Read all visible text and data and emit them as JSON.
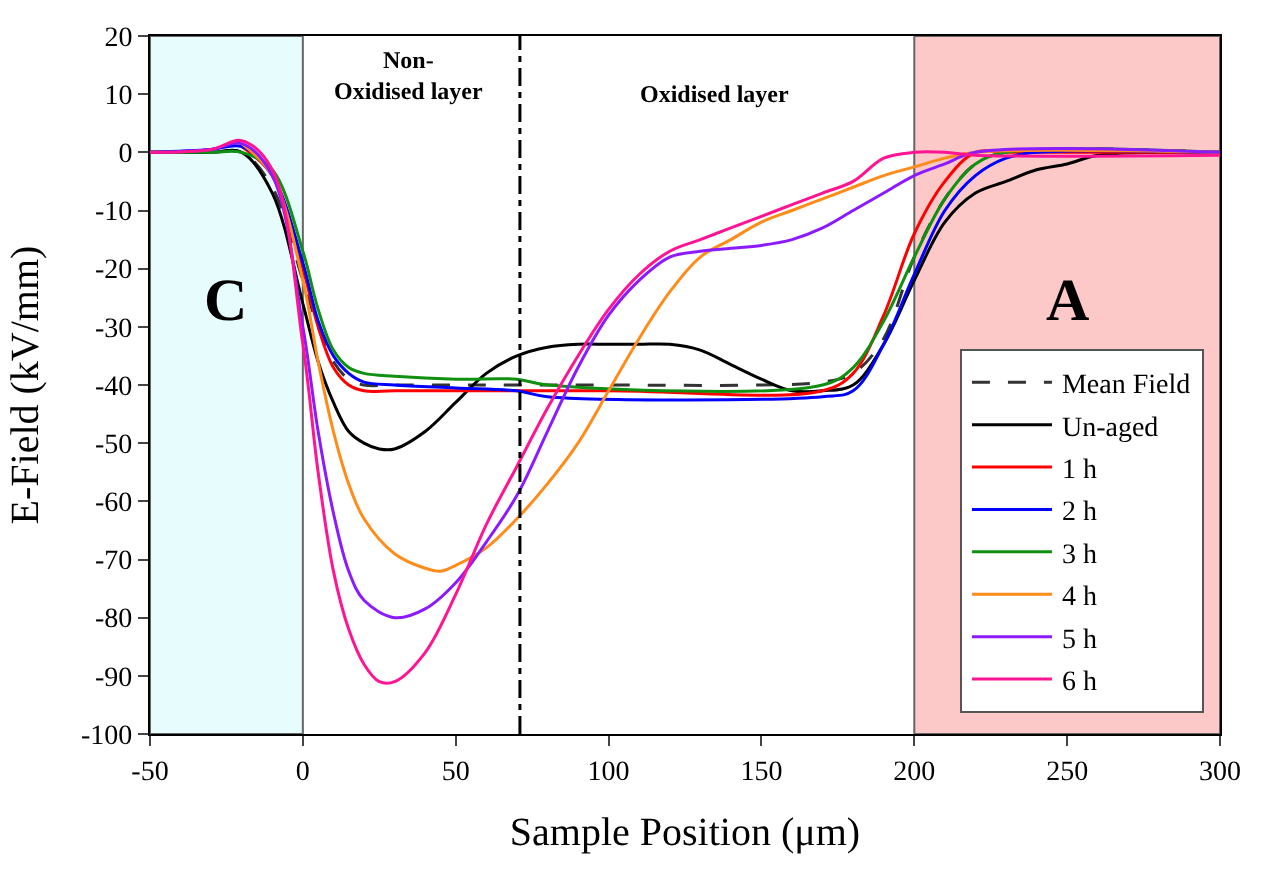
{
  "chart_data": {
    "type": "line",
    "xlabel": "Sample Position (μm)",
    "ylabel": "E-Field (kV/mm)",
    "xlim": [
      -50,
      300
    ],
    "xticks": [
      -50,
      0,
      50,
      100,
      150,
      200,
      250,
      300
    ],
    "ylim": [
      -100,
      20
    ],
    "yticks": [
      -100,
      -90,
      -80,
      -70,
      -60,
      -50,
      -40,
      -30,
      -20,
      -10,
      0,
      10,
      20
    ],
    "grid": false,
    "legend": "bottom right",
    "marker": "none",
    "bands": [
      {
        "axis": "x",
        "from": -50,
        "to": 0,
        "label": "C",
        "color": "#e6fcfd"
      },
      {
        "axis": "x",
        "from": 200,
        "to": 300,
        "label": "A",
        "color": "#fcc8c8"
      }
    ],
    "ref_lines": [
      {
        "axis": "x",
        "value": 71,
        "label": null,
        "line_style": "dashdot",
        "color": "#000000"
      }
    ],
    "annotations": [
      "Non-\nOxidised layer",
      "Oxidised layer"
    ],
    "series": [
      {
        "name": "Mean Field",
        "color": "#333333",
        "line_style": "dashed",
        "x": [
          -50,
          -30,
          -20,
          -10,
          0,
          5,
          10,
          15,
          20,
          30,
          50,
          70,
          100,
          150,
          170,
          180,
          190,
          200,
          210,
          220,
          230,
          300
        ],
        "values": [
          0,
          0,
          0,
          -6,
          -22,
          -30,
          -36,
          -39,
          -40,
          -40,
          -40,
          -40,
          -40,
          -40,
          -39.5,
          -38,
          -32,
          -18,
          -8,
          -2,
          0,
          0
        ]
      },
      {
        "name": "Un-aged",
        "color": "#000000",
        "x": [
          -50,
          -30,
          -20,
          -10,
          0,
          5,
          10,
          15,
          20,
          25,
          30,
          40,
          50,
          60,
          70,
          80,
          90,
          100,
          110,
          120,
          130,
          140,
          150,
          160,
          170,
          180,
          190,
          200,
          210,
          220,
          230,
          240,
          250,
          260,
          280,
          300
        ],
        "values": [
          0,
          0,
          0,
          -7,
          -26,
          -36,
          -43,
          -48,
          -50,
          -51,
          -51,
          -48,
          -43,
          -38,
          -35,
          -33.5,
          -33,
          -33,
          -33,
          -33,
          -34,
          -36.5,
          -39,
          -41,
          -41,
          -40,
          -33,
          -22,
          -12,
          -7,
          -5,
          -3,
          -2,
          -0.5,
          0,
          0
        ]
      },
      {
        "name": "1 h",
        "color": "#ff0000",
        "x": [
          -20,
          -10,
          0,
          5,
          10,
          15,
          20,
          30,
          100,
          170,
          180,
          190,
          200,
          210,
          220,
          230,
          300
        ],
        "values": [
          1,
          -4,
          -20,
          -30,
          -37,
          -40,
          -41,
          -41,
          -41,
          -41,
          -38,
          -28,
          -14,
          -5,
          0,
          0,
          0
        ]
      },
      {
        "name": "2 h",
        "color": "#0000ff",
        "x": [
          -50,
          -30,
          -20,
          -10,
          0,
          5,
          10,
          15,
          20,
          30,
          50,
          70,
          80,
          170,
          180,
          190,
          200,
          210,
          220,
          230,
          240,
          300
        ],
        "values": [
          0,
          0.5,
          1,
          -4,
          -19,
          -29,
          -35,
          -38,
          -39.5,
          -40,
          -40.5,
          -41,
          -42,
          -42,
          -41,
          -33,
          -21,
          -10,
          -4,
          -1,
          0,
          0
        ]
      },
      {
        "name": "3 h",
        "color": "#109010",
        "x": [
          -50,
          -30,
          -20,
          -10,
          0,
          5,
          10,
          15,
          20,
          30,
          50,
          70,
          80,
          170,
          180,
          190,
          200,
          210,
          220,
          230,
          300
        ],
        "values": [
          0,
          0,
          0,
          -3,
          -17,
          -27,
          -34,
          -37,
          -38,
          -38.5,
          -39,
          -39,
          -40,
          -40,
          -37,
          -29,
          -18,
          -8,
          -2,
          0,
          0
        ]
      },
      {
        "name": "4 h",
        "color": "#ff8c1a",
        "x": [
          -20,
          -10,
          0,
          5,
          10,
          15,
          20,
          30,
          40,
          45,
          50,
          60,
          70,
          80,
          90,
          100,
          110,
          120,
          130,
          140,
          150,
          160,
          170,
          180,
          190,
          200,
          210,
          220,
          300
        ],
        "values": [
          1.5,
          -4,
          -22,
          -36,
          -48,
          -57,
          -63,
          -69,
          -71.5,
          -72,
          -71,
          -68,
          -63,
          -57,
          -50,
          -41,
          -32,
          -24,
          -18,
          -15,
          -12,
          -10,
          -8,
          -6,
          -4,
          -2.5,
          -1,
          0,
          0
        ]
      },
      {
        "name": "5 h",
        "color": "#8b1aff",
        "x": [
          -50,
          -30,
          -20,
          -10,
          0,
          5,
          10,
          15,
          20,
          30,
          40,
          50,
          60,
          70,
          80,
          90,
          100,
          110,
          120,
          130,
          140,
          150,
          160,
          170,
          180,
          190,
          200,
          210,
          220,
          300
        ],
        "values": [
          0,
          0.5,
          1.5,
          -4,
          -30,
          -48,
          -62,
          -72,
          -77,
          -80,
          -78.5,
          -74,
          -67,
          -59,
          -48,
          -37,
          -28,
          -22,
          -18,
          -17,
          -16.5,
          -16,
          -15,
          -13,
          -10,
          -7,
          -4,
          -2,
          0,
          0
        ]
      },
      {
        "name": "6 h",
        "color": "#ff1493",
        "x": [
          -50,
          -30,
          -20,
          -10,
          0,
          5,
          10,
          15,
          20,
          25,
          30,
          40,
          50,
          60,
          70,
          80,
          90,
          100,
          110,
          120,
          130,
          140,
          150,
          160,
          170,
          180,
          190,
          200,
          210,
          220,
          300
        ],
        "values": [
          0,
          0.5,
          2,
          -3,
          -33,
          -55,
          -72,
          -82,
          -88,
          -91,
          -91,
          -86,
          -76,
          -64,
          -54,
          -44,
          -35,
          -27,
          -21,
          -17,
          -15,
          -13,
          -11,
          -9,
          -7,
          -5,
          -1,
          0,
          0,
          -0.5,
          -0.5
        ]
      }
    ]
  }
}
